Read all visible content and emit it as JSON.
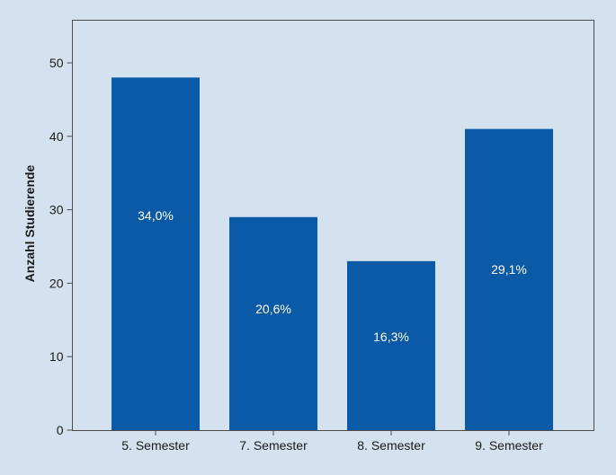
{
  "chart_data": {
    "type": "bar",
    "categories": [
      "5. Semester",
      "7. Semester",
      "8. Semester",
      "9. Semester"
    ],
    "values": [
      48,
      29,
      23,
      41
    ],
    "data_labels": [
      "34,0%",
      "20,6%",
      "16,3%",
      "29,1%"
    ],
    "ylabel": "Anzahl Studierende",
    "xlabel": "",
    "ylim": [
      0,
      55
    ],
    "yticks": [
      0,
      10,
      20,
      30,
      40,
      50
    ],
    "grid": false,
    "bar_color": "#0a5aa8",
    "background_color": "#d3e2ee"
  }
}
